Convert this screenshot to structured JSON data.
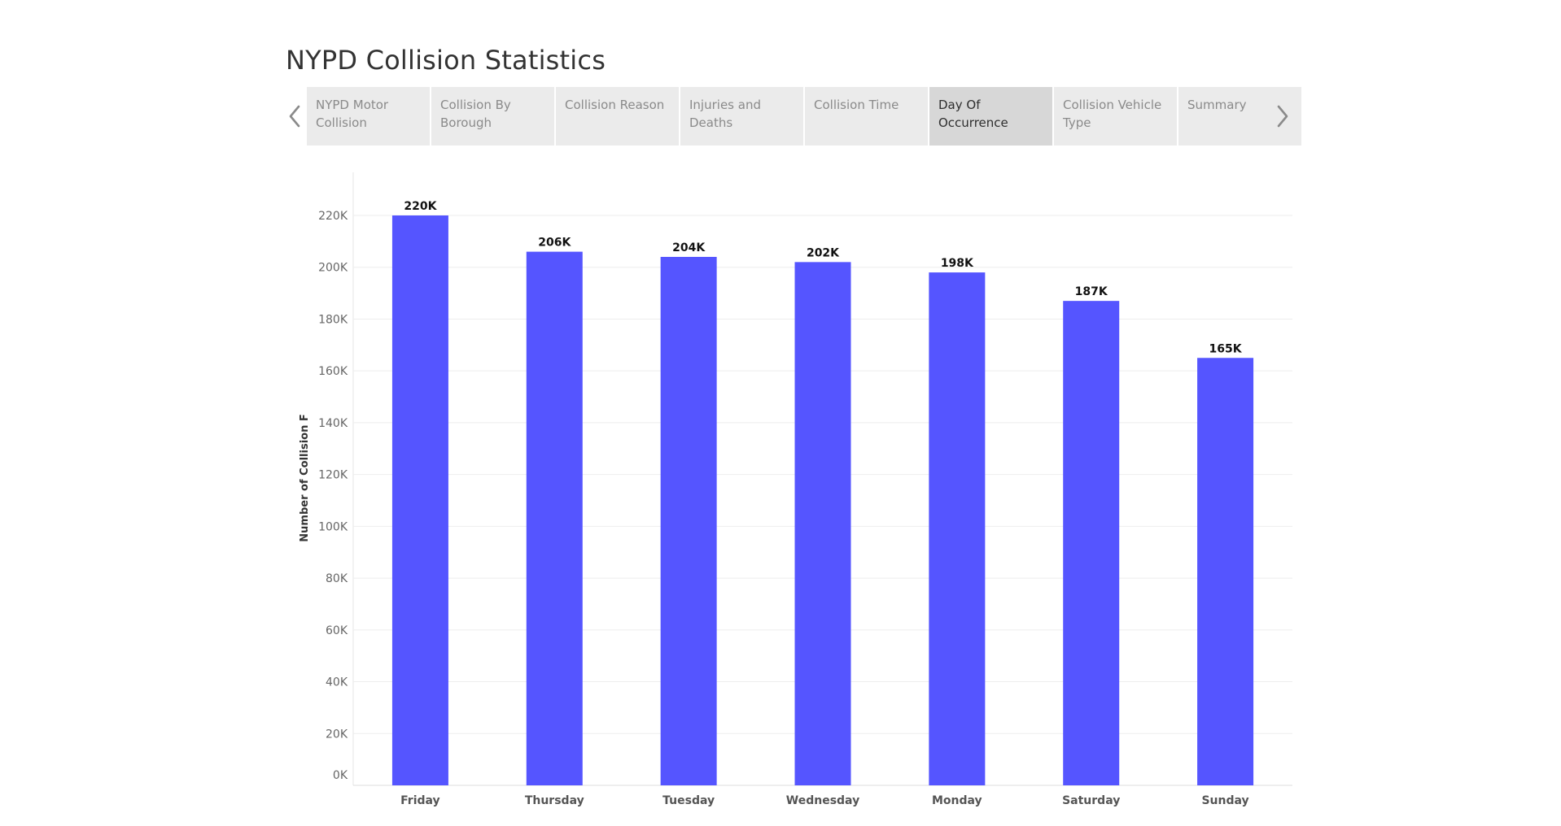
{
  "page": {
    "title": "NYPD Collision Statistics"
  },
  "tabs": {
    "items": [
      {
        "label": "NYPD Motor Collision",
        "active": false
      },
      {
        "label": "Collision By Borough",
        "active": false
      },
      {
        "label": "Collision Reason",
        "active": false
      },
      {
        "label": "Injuries and Deaths",
        "active": false
      },
      {
        "label": "Collision Time",
        "active": false
      },
      {
        "label": "Day Of Occurrence",
        "active": true
      },
      {
        "label": "Collision Vehicle Type",
        "active": false
      },
      {
        "label": "Summary",
        "active": false
      }
    ],
    "prev_icon": "chevron-left-icon",
    "next_icon": "chevron-right-icon"
  },
  "colors": {
    "bar": "#5555ff",
    "grid": "#eeeeee",
    "axis_text": "#666666",
    "label_text": "#111111",
    "tab_bg": "#ebebeb",
    "tab_active_bg": "#d7d7d7"
  },
  "chart_data": {
    "type": "bar",
    "ylabel": "Number of Collision F",
    "categories": [
      "Friday",
      "Thursday",
      "Tuesday",
      "Wednesday",
      "Monday",
      "Saturday",
      "Sunday"
    ],
    "values": [
      220000,
      206000,
      204000,
      202000,
      198000,
      187000,
      165000
    ],
    "data_labels": [
      "220K",
      "206K",
      "204K",
      "202K",
      "198K",
      "187K",
      "165K"
    ],
    "ylim": [
      0,
      220000
    ],
    "yticks": [
      0,
      20000,
      40000,
      60000,
      80000,
      100000,
      120000,
      140000,
      160000,
      180000,
      200000,
      220000
    ],
    "ytick_labels": [
      "0K",
      "20K",
      "40K",
      "60K",
      "80K",
      "100K",
      "120K",
      "140K",
      "160K",
      "180K",
      "200K",
      "220K"
    ],
    "grid": true,
    "legend": "none"
  }
}
